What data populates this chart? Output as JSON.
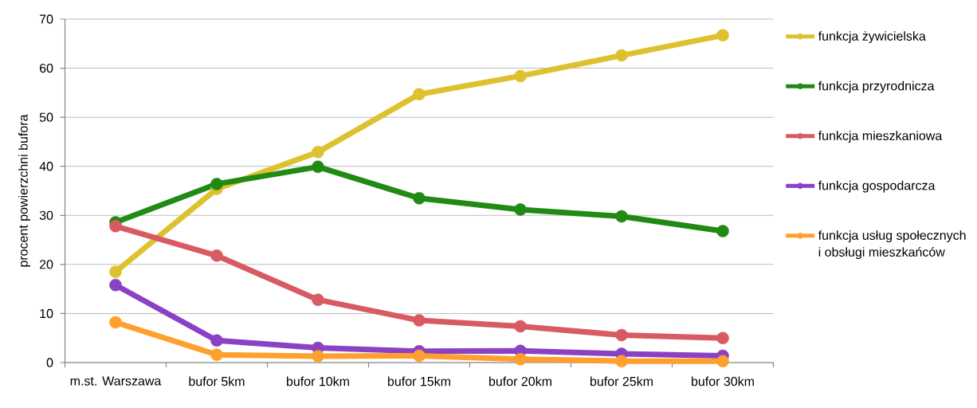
{
  "chart_data": {
    "type": "line",
    "ylabel": "procent powierzchni bufora",
    "categories": [
      "m.st. Warszawa",
      "bufor 5km",
      "bufor 10km",
      "bufor 15km",
      "bufor 20km",
      "bufor 25km",
      "bufor 30km"
    ],
    "series": [
      {
        "name": "funkcja żywicielska",
        "color": "#dec12e",
        "values": [
          18.5,
          35.4,
          42.9,
          54.7,
          58.4,
          62.6,
          66.7
        ]
      },
      {
        "name": "funkcja przyrodnicza",
        "color": "#218a14",
        "values": [
          28.6,
          36.4,
          39.9,
          33.5,
          31.2,
          29.8,
          26.8
        ]
      },
      {
        "name": "funkcja mieszkaniowa",
        "color": "#d85b63",
        "values": [
          27.8,
          21.8,
          12.8,
          8.6,
          7.4,
          5.6,
          5.0
        ]
      },
      {
        "name": "funkcja gospodarcza",
        "color": "#8b41c3",
        "values": [
          15.8,
          4.5,
          3.0,
          2.3,
          2.4,
          1.8,
          1.4
        ]
      },
      {
        "name": "funkcja usług społecznych i obsługi mieszkańców",
        "color": "#fe9f2e",
        "values": [
          8.2,
          1.6,
          1.3,
          1.4,
          0.7,
          0.3,
          0.3
        ]
      }
    ],
    "ylim": [
      0,
      70
    ],
    "yticks": [
      0,
      10,
      20,
      30,
      40,
      50,
      60,
      70
    ],
    "grid": "y",
    "legend": "right",
    "marker": "circle",
    "line_style": "solid"
  }
}
